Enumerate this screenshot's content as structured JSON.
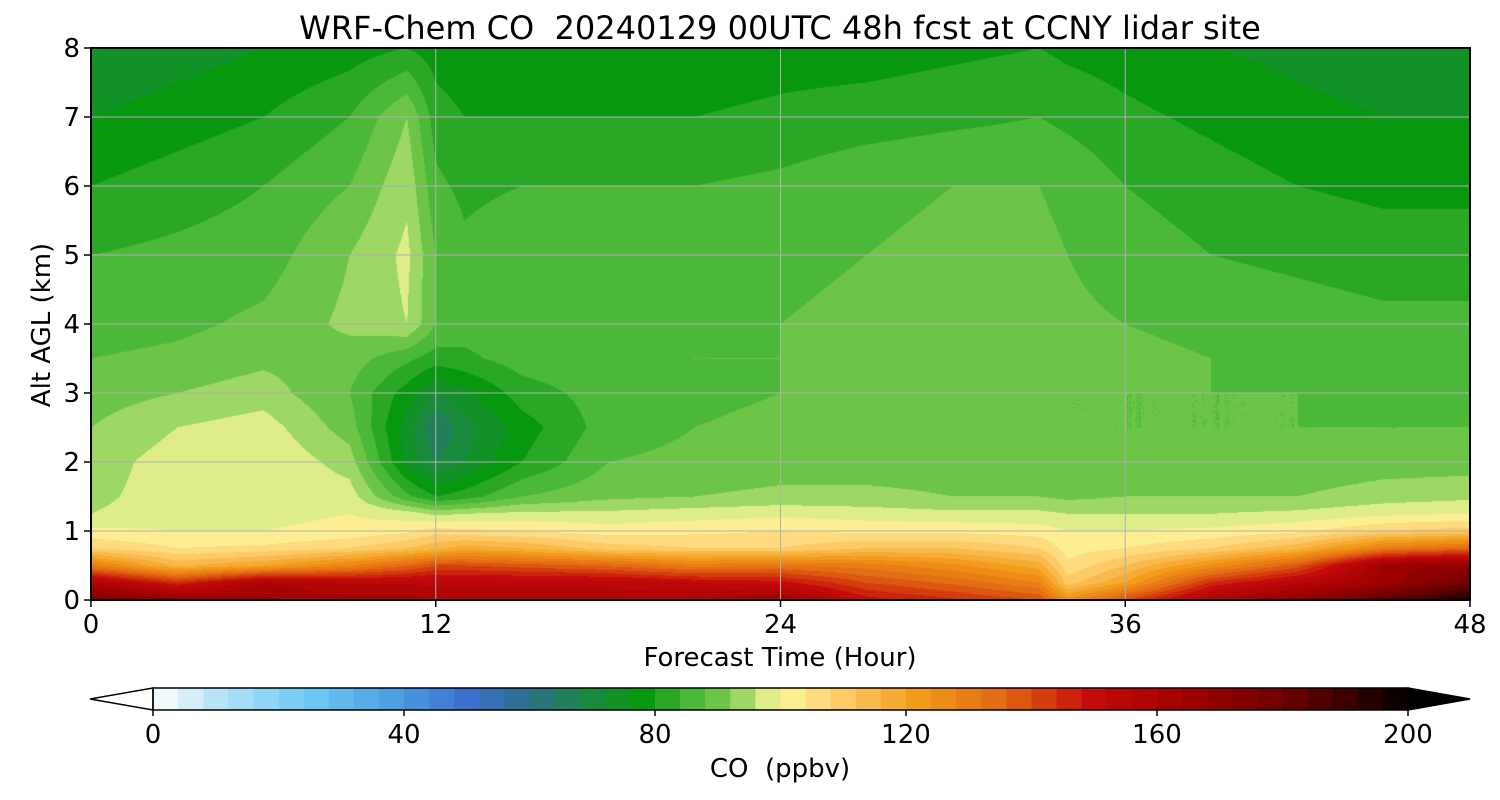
{
  "chart_data": {
    "type": "heatmap",
    "subtype": "filled-contour",
    "title": "WRF-Chem CO  20240129 00UTC 48h fcst at CCNY lidar site",
    "xlabel": "Forecast Time (Hour)",
    "ylabel": "Alt AGL (km)",
    "xlim": [
      0,
      48
    ],
    "ylim": [
      0,
      8
    ],
    "xticks": [
      0,
      12,
      24,
      36,
      48
    ],
    "yticks": [
      0,
      1,
      2,
      3,
      4,
      5,
      6,
      7,
      8
    ],
    "grid": true,
    "x": [
      0,
      3,
      6,
      9,
      11,
      12,
      13,
      15,
      18,
      21,
      24,
      27,
      30,
      33,
      34,
      36,
      39,
      42,
      45,
      48
    ],
    "y": [
      0,
      0.25,
      0.5,
      0.75,
      1,
      1.25,
      1.5,
      2,
      2.5,
      3,
      3.5,
      4,
      5,
      6,
      7,
      8
    ],
    "z": [
      [
        175,
        170,
        165,
        162,
        162,
        160,
        158,
        158,
        158,
        160,
        165,
        150,
        145,
        140,
        125,
        140,
        160,
        170,
        185,
        195
      ],
      [
        160,
        145,
        160,
        155,
        155,
        155,
        155,
        155,
        155,
        152,
        150,
        140,
        135,
        128,
        110,
        120,
        145,
        155,
        165,
        180
      ],
      [
        130,
        115,
        120,
        128,
        135,
        140,
        140,
        138,
        135,
        130,
        132,
        130,
        125,
        118,
        105,
        112,
        125,
        138,
        165,
        170
      ],
      [
        108,
        104,
        105,
        108,
        112,
        115,
        118,
        116,
        110,
        108,
        108,
        112,
        112,
        108,
        102,
        104,
        108,
        115,
        130,
        135
      ],
      [
        101,
        100,
        100,
        101,
        103,
        106,
        105,
        104,
        102,
        103,
        104,
        103,
        103,
        102,
        100,
        100,
        101,
        103,
        108,
        110
      ],
      [
        96,
        98,
        99,
        100,
        98,
        95,
        96,
        97,
        97,
        98,
        99,
        98,
        97,
        97,
        96,
        96,
        96,
        97,
        99,
        100
      ],
      [
        95,
        98,
        100,
        98,
        85,
        80,
        82,
        88,
        91,
        92,
        93,
        93,
        92,
        92,
        91,
        92,
        92,
        92,
        94,
        95
      ],
      [
        94,
        98,
        100,
        94,
        75,
        68,
        72,
        80,
        88,
        89,
        90,
        90,
        90,
        90,
        89,
        89,
        89,
        89,
        90,
        90
      ],
      [
        92,
        96,
        98,
        90,
        74,
        64,
        70,
        78,
        86,
        88,
        89,
        89,
        89,
        89,
        88,
        88,
        88,
        88,
        88,
        88
      ],
      [
        90,
        92,
        94,
        88,
        78,
        72,
        75,
        82,
        86,
        87,
        88,
        89,
        89,
        89,
        88,
        88,
        88,
        88,
        87,
        87
      ],
      [
        88,
        89,
        91,
        90,
        85,
        82,
        83,
        86,
        87,
        88,
        88,
        89,
        89,
        90,
        90,
        89,
        88,
        87,
        86,
        86
      ],
      [
        86,
        87,
        89,
        93,
        96,
        88,
        86,
        87,
        87,
        87,
        88,
        89,
        90,
        90,
        89,
        88,
        87,
        86,
        85,
        85
      ],
      [
        84,
        85,
        86,
        92,
        97,
        88,
        85,
        87,
        86,
        86,
        87,
        88,
        89,
        89,
        88,
        86,
        84,
        83,
        82,
        82
      ],
      [
        80,
        82,
        84,
        88,
        95,
        85,
        83,
        84,
        84,
        84,
        85,
        87,
        88,
        88,
        87,
        84,
        82,
        80,
        79,
        79
      ],
      [
        76,
        78,
        80,
        84,
        92,
        82,
        80,
        80,
        80,
        80,
        81,
        82,
        83,
        84,
        83,
        81,
        79,
        77,
        76,
        76
      ],
      [
        72,
        74,
        76,
        78,
        80,
        78,
        77,
        77,
        77,
        77,
        78,
        78,
        79,
        80,
        79,
        78,
        76,
        75,
        74,
        73
      ]
    ],
    "colorbar": {
      "label": "CO  (ppbv)",
      "min": 0,
      "max": 200,
      "ticks": [
        0,
        40,
        80,
        120,
        160,
        200
      ],
      "extend": "both",
      "stops": [
        [
          0,
          "#ffffff"
        ],
        [
          10,
          "#b9e3f7"
        ],
        [
          25,
          "#6ec9f5"
        ],
        [
          40,
          "#4a98e0"
        ],
        [
          50,
          "#3d6fcf"
        ],
        [
          60,
          "#2b6e86"
        ],
        [
          70,
          "#1a8a3c"
        ],
        [
          78,
          "#089810"
        ],
        [
          86,
          "#4cb83a"
        ],
        [
          92,
          "#7ccb4e"
        ],
        [
          96,
          "#bde27a"
        ],
        [
          100,
          "#fff89a"
        ],
        [
          104,
          "#fde38a"
        ],
        [
          112,
          "#fbc25a"
        ],
        [
          122,
          "#f39b1a"
        ],
        [
          135,
          "#e26a12"
        ],
        [
          150,
          "#c40a0a"
        ],
        [
          165,
          "#a00000"
        ],
        [
          180,
          "#6e0000"
        ],
        [
          192,
          "#300000"
        ],
        [
          200,
          "#000000"
        ]
      ]
    }
  }
}
